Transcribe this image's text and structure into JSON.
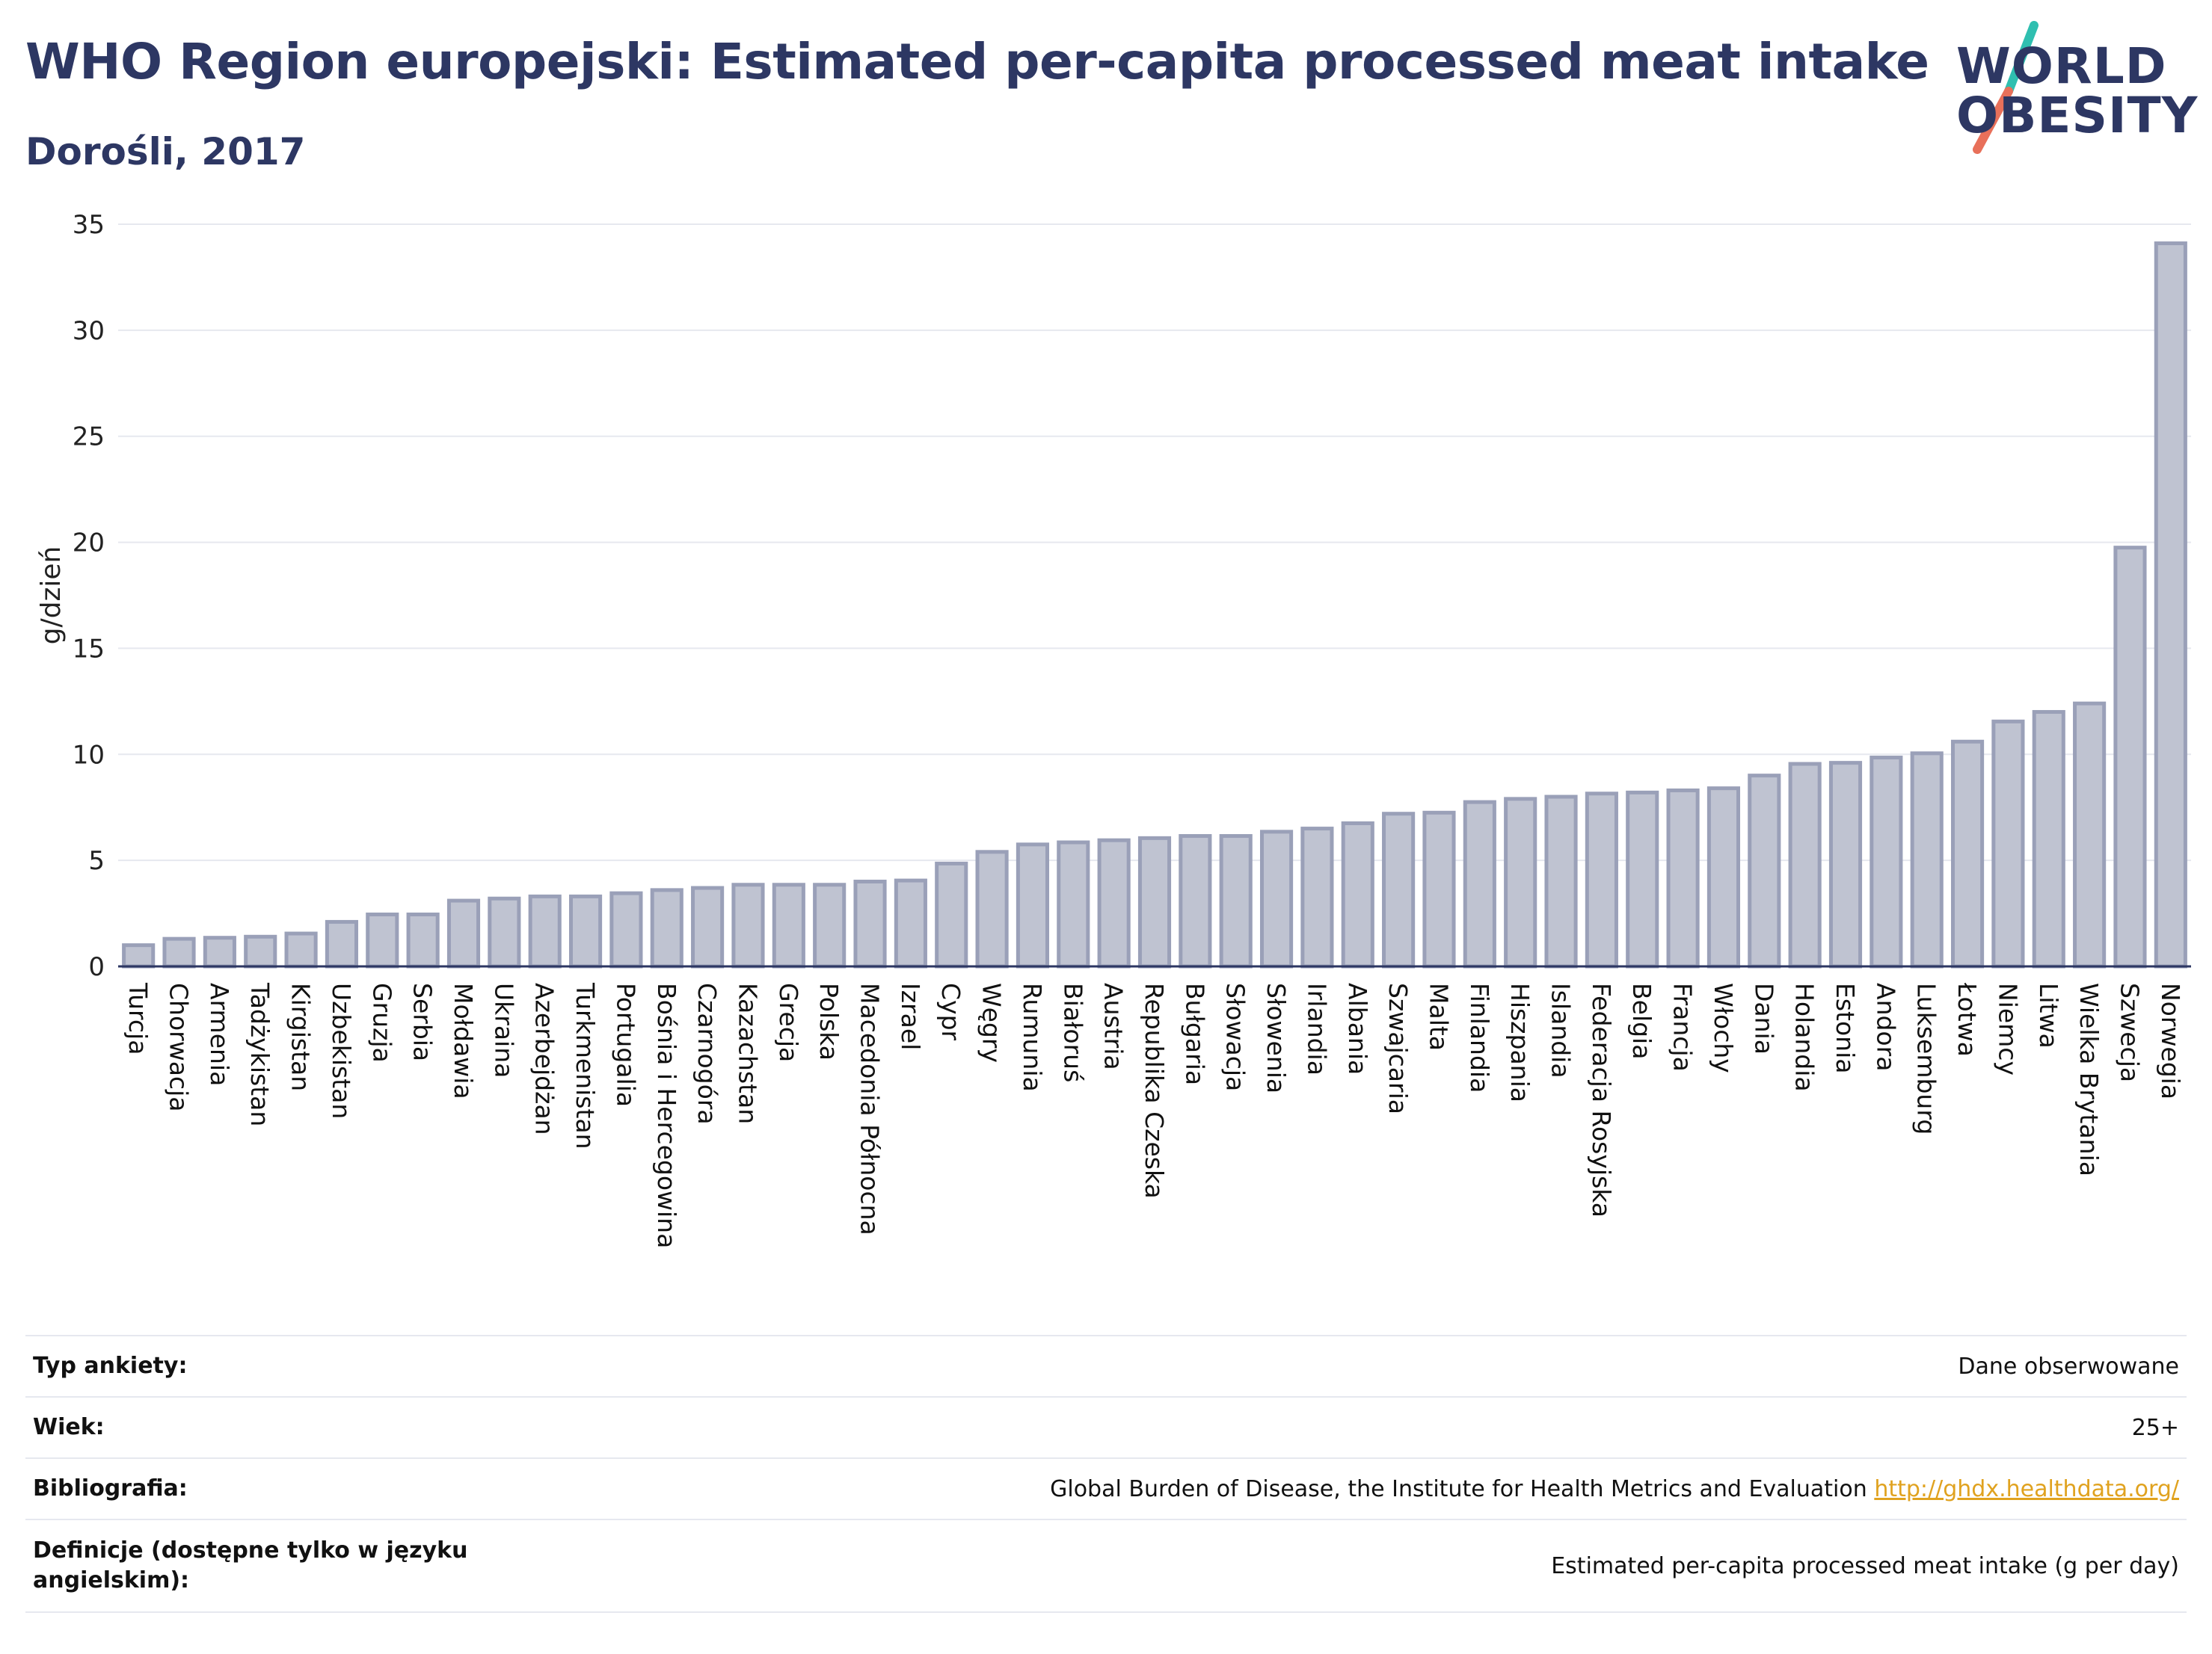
{
  "header": {
    "title": "WHO Region europejski: Estimated per-capita processed meat intake",
    "subtitle": "Dorośli, 2017"
  },
  "logo": {
    "line1": "WORLD",
    "line2": "OBESITY",
    "accent_colors": [
      "#2fbfb0",
      "#e8705a"
    ]
  },
  "chart_data": {
    "type": "bar",
    "ylabel": "g/dzień",
    "ylim": [
      0,
      35
    ],
    "yticks": [
      0,
      5,
      10,
      15,
      20,
      25,
      30,
      35
    ],
    "grid": true,
    "bar_color": "#bfc3d1",
    "bar_edge_color": "#9aa0b8",
    "categories": [
      "Turcja",
      "Chorwacja",
      "Armenia",
      "Tadżykistan",
      "Kirgistan",
      "Uzbekistan",
      "Gruzja",
      "Serbia",
      "Mołdawia",
      "Ukraina",
      "Azerbejdżan",
      "Turkmenistan",
      "Portugalia",
      "Bośnia i Hercegowina",
      "Czarnogóra",
      "Kazachstan",
      "Grecja",
      "Polska",
      "Macedonia Północna",
      "Izrael",
      "Cypr",
      "Węgry",
      "Rumunia",
      "Białoruś",
      "Austria",
      "Republika Czeska",
      "Bułgaria",
      "Słowacja",
      "Słowenia",
      "Irlandia",
      "Albania",
      "Szwajcaria",
      "Malta",
      "Finlandia",
      "Hiszpania",
      "Islandia",
      "Federacja Rosyjska",
      "Belgia",
      "Francja",
      "Włochy",
      "Dania",
      "Holandia",
      "Estonia",
      "Andora",
      "Luksemburg",
      "Łotwa",
      "Niemcy",
      "Litwa",
      "Wielka Brytania",
      "Szwecja",
      "Norwegia"
    ],
    "values": [
      1.0,
      1.3,
      1.35,
      1.4,
      1.55,
      2.1,
      2.45,
      2.45,
      3.1,
      3.2,
      3.3,
      3.3,
      3.45,
      3.6,
      3.7,
      3.85,
      3.85,
      3.85,
      4.0,
      4.05,
      4.85,
      5.4,
      5.75,
      5.85,
      5.95,
      6.05,
      6.15,
      6.15,
      6.35,
      6.5,
      6.75,
      7.2,
      7.25,
      7.75,
      7.9,
      8.0,
      8.15,
      8.2,
      8.3,
      8.4,
      9.0,
      9.55,
      9.6,
      9.85,
      10.05,
      10.6,
      11.55,
      12.0,
      12.4,
      19.75,
      34.1
    ]
  },
  "info": [
    {
      "label": "Typ ankiety:",
      "value": "Dane obserwowane"
    },
    {
      "label": "Wiek:",
      "value": "25+"
    },
    {
      "label": "Bibliografia:",
      "value": "Global Burden of Disease, the Institute for Health Metrics and Evaluation",
      "link": "http://ghdx.healthdata.org/"
    },
    {
      "label": "Definicje (dostępne tylko w języku angielskim):",
      "value": "Estimated per-capita processed meat intake (g per day)"
    }
  ]
}
